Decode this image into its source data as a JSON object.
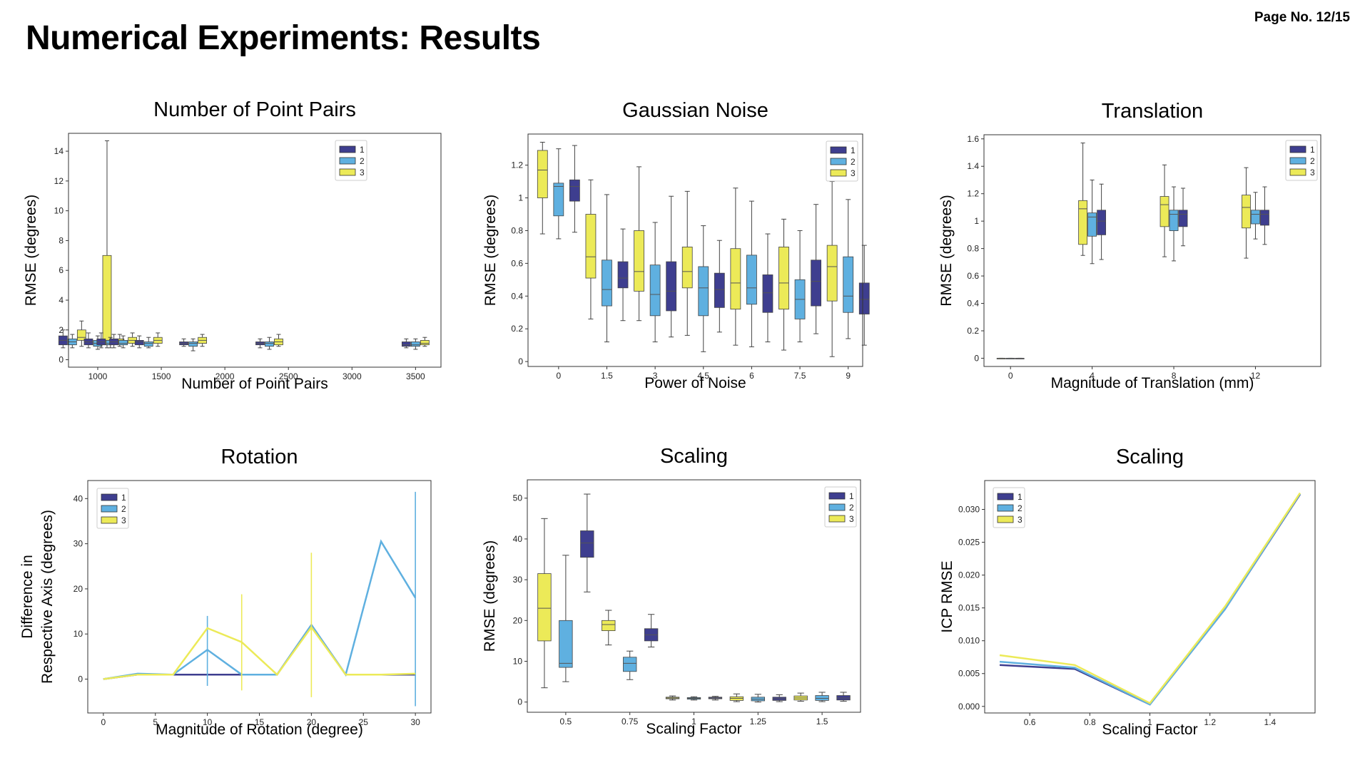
{
  "page": {
    "title": "Numerical Experiments: Results",
    "page_no": "Page No. 12/15"
  },
  "colors": {
    "1": "#3e3e8f",
    "2": "#5fb0e0",
    "3": "#ecea58"
  },
  "legend": [
    "1",
    "2",
    "3"
  ],
  "chart_data": [
    {
      "id": "points",
      "type": "box",
      "title": "Number of Point Pairs",
      "xlabel": "Number of Point Pairs",
      "ylabel": "RMSE (degrees)",
      "xaxis": "numeric",
      "xlim": [
        770,
        3700
      ],
      "ylim": [
        -0.5,
        15.2
      ],
      "xticks": [
        1000,
        1500,
        2000,
        2500,
        3000,
        3500
      ],
      "yticks": [
        0,
        2,
        4,
        6,
        8,
        10,
        12,
        14
      ],
      "series": [
        "1",
        "2",
        "3"
      ],
      "groups": [
        {
          "x": 800,
          "boxes": [
            [
              0.8,
              1.0,
              1.3,
              1.6,
              2.0
            ],
            [
              0.8,
              1.0,
              1.2,
              1.4,
              1.7
            ],
            [
              0.9,
              1.3,
              1.5,
              2.0,
              2.6
            ]
          ]
        },
        {
          "x": 1000,
          "boxes": [
            [
              0.8,
              1.0,
              1.2,
              1.4,
              1.8
            ],
            [
              0.7,
              0.9,
              1.1,
              1.3,
              1.6
            ],
            [
              0.8,
              1.0,
              1.3,
              7.0,
              14.7
            ]
          ]
        },
        {
          "x": 1100,
          "boxes": [
            [
              0.8,
              1.0,
              1.2,
              1.4,
              1.8
            ],
            [
              0.8,
              1.0,
              1.1,
              1.3,
              1.5
            ],
            [
              0.9,
              1.1,
              1.3,
              1.4,
              1.7
            ]
          ]
        },
        {
          "x": 1200,
          "boxes": [
            [
              0.8,
              1.0,
              1.2,
              1.4,
              1.7
            ],
            [
              0.8,
              1.0,
              1.1,
              1.3,
              1.6
            ],
            [
              0.9,
              1.1,
              1.3,
              1.5,
              1.8
            ]
          ]
        },
        {
          "x": 1400,
          "boxes": [
            [
              0.8,
              1.0,
              1.2,
              1.3,
              1.6
            ],
            [
              0.8,
              0.9,
              1.1,
              1.2,
              1.5
            ],
            [
              0.9,
              1.1,
              1.3,
              1.5,
              1.8
            ]
          ]
        },
        {
          "x": 1750,
          "boxes": [
            [
              0.9,
              1.0,
              1.1,
              1.2,
              1.4
            ],
            [
              0.6,
              0.9,
              1.1,
              1.2,
              1.4
            ],
            [
              0.9,
              1.1,
              1.3,
              1.5,
              1.7
            ]
          ]
        },
        {
          "x": 2350,
          "boxes": [
            [
              0.8,
              1.0,
              1.1,
              1.2,
              1.4
            ],
            [
              0.7,
              0.9,
              1.1,
              1.2,
              1.5
            ],
            [
              0.9,
              1.0,
              1.2,
              1.4,
              1.7
            ]
          ]
        },
        {
          "x": 3500,
          "boxes": [
            [
              0.8,
              0.9,
              1.0,
              1.2,
              1.4
            ],
            [
              0.7,
              0.9,
              1.0,
              1.2,
              1.4
            ],
            [
              0.9,
              1.0,
              1.1,
              1.3,
              1.5
            ]
          ]
        }
      ]
    },
    {
      "id": "noise",
      "type": "box",
      "title": "Gaussian Noise",
      "xlabel": "Power of Noise",
      "ylabel": "RMSE (degrees)",
      "xaxis": "index",
      "xlim": [
        -0.9,
        19.9
      ],
      "ylim": [
        -0.03,
        1.39
      ],
      "xticks": [
        0,
        1.5,
        3,
        4.5,
        6,
        7.5,
        9
      ],
      "xtick_idx": [
        1,
        4,
        7,
        10,
        13,
        16,
        19
      ],
      "yticks": [
        0.0,
        0.2,
        0.4,
        0.6,
        0.8,
        1.0,
        1.2
      ],
      "series": [
        "3",
        "2",
        "1"
      ],
      "groups": [
        {
          "x": 0,
          "boxes": [
            [
              0.78,
              1.0,
              1.17,
              1.29,
              1.34
            ],
            [
              0.75,
              0.89,
              1.07,
              1.09,
              1.3
            ],
            [
              0.79,
              0.98,
              1.07,
              1.11,
              1.32
            ]
          ]
        },
        {
          "x": 1.5,
          "boxes": [
            [
              0.26,
              0.51,
              0.64,
              0.9,
              1.11
            ],
            [
              0.12,
              0.34,
              0.44,
              0.62,
              1.02
            ],
            [
              0.25,
              0.45,
              0.51,
              0.61,
              0.81
            ]
          ]
        },
        {
          "x": 3,
          "boxes": [
            [
              0.25,
              0.43,
              0.55,
              0.8,
              1.19
            ],
            [
              0.12,
              0.28,
              0.41,
              0.59,
              0.85
            ],
            [
              0.15,
              0.31,
              0.43,
              0.61,
              1.01
            ]
          ]
        },
        {
          "x": 4.5,
          "boxes": [
            [
              0.16,
              0.45,
              0.55,
              0.7,
              1.04
            ],
            [
              0.06,
              0.28,
              0.45,
              0.58,
              0.83
            ],
            [
              0.18,
              0.33,
              0.44,
              0.54,
              0.74
            ]
          ]
        },
        {
          "x": 6,
          "boxes": [
            [
              0.1,
              0.32,
              0.48,
              0.69,
              1.06
            ],
            [
              0.09,
              0.35,
              0.45,
              0.65,
              0.98
            ],
            [
              0.12,
              0.3,
              0.42,
              0.53,
              0.78
            ]
          ]
        },
        {
          "x": 7.5,
          "boxes": [
            [
              0.07,
              0.32,
              0.48,
              0.7,
              0.87
            ],
            [
              0.12,
              0.26,
              0.38,
              0.5,
              0.8
            ],
            [
              0.17,
              0.34,
              0.49,
              0.62,
              0.96
            ]
          ]
        },
        {
          "x": 9,
          "boxes": [
            [
              0.03,
              0.37,
              0.58,
              0.71,
              1.1
            ],
            [
              0.14,
              0.3,
              0.4,
              0.64,
              0.99
            ],
            [
              0.1,
              0.29,
              0.38,
              0.48,
              0.71
            ]
          ]
        }
      ]
    },
    {
      "id": "translation",
      "type": "box",
      "title": "Translation",
      "xlabel": "Magnitude of Translation (mm)",
      "ylabel": "RMSE (degrees)",
      "xaxis": "numeric",
      "xlim": [
        -1.3,
        15.2
      ],
      "ylim": [
        -0.06,
        1.63
      ],
      "xticks": [
        0,
        4,
        8,
        12
      ],
      "yticks": [
        0.0,
        0.2,
        0.4,
        0.6,
        0.8,
        1.0,
        1.2,
        1.4,
        1.6
      ],
      "series": [
        "3",
        "2",
        "1"
      ],
      "groups": [
        {
          "x": 0,
          "boxes": [
            [
              0,
              0,
              0,
              0,
              0
            ],
            [
              0,
              0,
              0,
              0,
              0
            ],
            [
              0,
              0,
              0,
              0,
              0
            ]
          ]
        },
        {
          "x": 4,
          "boxes": [
            [
              0.75,
              0.83,
              1.09,
              1.15,
              1.57
            ],
            [
              0.69,
              0.89,
              1.03,
              1.06,
              1.3
            ],
            [
              0.72,
              0.9,
              1.0,
              1.08,
              1.27
            ]
          ]
        },
        {
          "x": 8,
          "boxes": [
            [
              0.74,
              0.96,
              1.12,
              1.18,
              1.41
            ],
            [
              0.71,
              0.93,
              1.05,
              1.08,
              1.25
            ],
            [
              0.82,
              0.96,
              1.05,
              1.08,
              1.24
            ]
          ]
        },
        {
          "x": 12,
          "boxes": [
            [
              0.73,
              0.95,
              1.1,
              1.19,
              1.39
            ],
            [
              0.87,
              0.98,
              1.05,
              1.08,
              1.21
            ],
            [
              0.83,
              0.97,
              1.05,
              1.08,
              1.25
            ]
          ]
        }
      ]
    },
    {
      "id": "rotation",
      "type": "line",
      "title": "Rotation",
      "xlabel": "Magnitude of Rotation (degree)",
      "ylabel": [
        "Difference in",
        "Respective Axis (degrees)"
      ],
      "xlim": [
        -1.5,
        31.5
      ],
      "ylim": [
        -7.5,
        44
      ],
      "xticks": [
        0,
        5,
        10,
        15,
        20,
        25,
        30
      ],
      "yticks": [
        0,
        10,
        20,
        30,
        40
      ],
      "x": [
        0,
        3.3,
        6.7,
        10,
        13.3,
        16.7,
        20,
        23.3,
        26.7,
        30
      ],
      "series": [
        {
          "name": "1",
          "values": [
            0,
            1,
            1,
            1,
            1,
            1,
            12,
            1,
            1,
            1
          ],
          "errors": []
        },
        {
          "name": "2",
          "values": [
            0,
            1.2,
            1,
            6.5,
            1,
            1,
            12,
            1,
            30.5,
            18
          ],
          "errors": [
            [
              10,
              -1.5,
              14
            ],
            [
              30,
              -6,
              41.5
            ]
          ]
        },
        {
          "name": "3",
          "values": [
            0,
            1,
            1,
            11.3,
            8.2,
            1,
            11.5,
            1,
            1,
            1.2
          ],
          "errors": [
            [
              13.3,
              -2.5,
              18.8
            ],
            [
              20,
              -4,
              28
            ]
          ]
        }
      ]
    },
    {
      "id": "scaling_box",
      "type": "box",
      "title": "Scaling",
      "xlabel": "Scaling Factor",
      "ylabel": "RMSE (degrees)",
      "xaxis": "index",
      "xlim": [
        -0.8,
        14.8
      ],
      "ylim": [
        -2.5,
        54.5
      ],
      "xticks": [
        0.5,
        0.75,
        1.0,
        1.25,
        1.5
      ],
      "xtick_idx": [
        1,
        4,
        7,
        10,
        13
      ],
      "yticks": [
        0,
        10,
        20,
        30,
        40,
        50
      ],
      "series": [
        "3",
        "2",
        "1"
      ],
      "groups": [
        {
          "x": 0.5,
          "boxes": [
            [
              3.5,
              15,
              23,
              31.5,
              45
            ],
            [
              5,
              8.5,
              9.5,
              20,
              36
            ],
            [
              27,
              35.5,
              39,
              42,
              51
            ]
          ]
        },
        {
          "x": 0.75,
          "boxes": [
            [
              14,
              17.5,
              19,
              20,
              22.5
            ],
            [
              5.5,
              7.5,
              9.5,
              11,
              12.5
            ],
            [
              13.5,
              15,
              16.5,
              18,
              21.5
            ]
          ]
        },
        {
          "x": 1.0,
          "boxes": [
            [
              0.5,
              0.8,
              1,
              1.2,
              1.5
            ],
            [
              0.5,
              0.7,
              0.9,
              1.1,
              1.3
            ],
            [
              0.5,
              0.8,
              1,
              1.2,
              1.4
            ]
          ]
        },
        {
          "x": 1.25,
          "boxes": [
            [
              0.1,
              0.4,
              0.9,
              1.3,
              2
            ],
            [
              0,
              0.3,
              0.7,
              1.2,
              1.9
            ],
            [
              0.1,
              0.4,
              0.8,
              1.2,
              1.8
            ]
          ]
        },
        {
          "x": 1.5,
          "boxes": [
            [
              0.2,
              0.5,
              1,
              1.5,
              2.2
            ],
            [
              0.1,
              0.4,
              0.9,
              1.6,
              2.4
            ],
            [
              0.2,
              0.5,
              1,
              1.6,
              2.4
            ]
          ]
        }
      ]
    },
    {
      "id": "scaling_line",
      "type": "line",
      "title": "Scaling",
      "xlabel": "Scaling Factor",
      "ylabel": "ICP RMSE",
      "xlim": [
        0.45,
        1.55
      ],
      "ylim": [
        -0.001,
        0.0344
      ],
      "xticks": [
        0.6,
        0.8,
        1.0,
        1.2,
        1.4
      ],
      "yticks": [
        0.0,
        0.005,
        0.01,
        0.015,
        0.02,
        0.025,
        0.03
      ],
      "ytick_labels": [
        "0.000",
        "0.005",
        "0.010",
        "0.015",
        "0.020",
        "0.025",
        "0.030"
      ],
      "x": [
        0.5,
        0.75,
        1.0,
        1.25,
        1.5
      ],
      "series": [
        {
          "name": "1",
          "values": [
            0.0063,
            0.0057,
            0.0003,
            0.0148,
            0.0323
          ]
        },
        {
          "name": "2",
          "values": [
            0.0068,
            0.0059,
            0.0003,
            0.0148,
            0.0324
          ]
        },
        {
          "name": "3",
          "values": [
            0.0078,
            0.0063,
            0.0005,
            0.0152,
            0.0325
          ]
        }
      ]
    }
  ]
}
